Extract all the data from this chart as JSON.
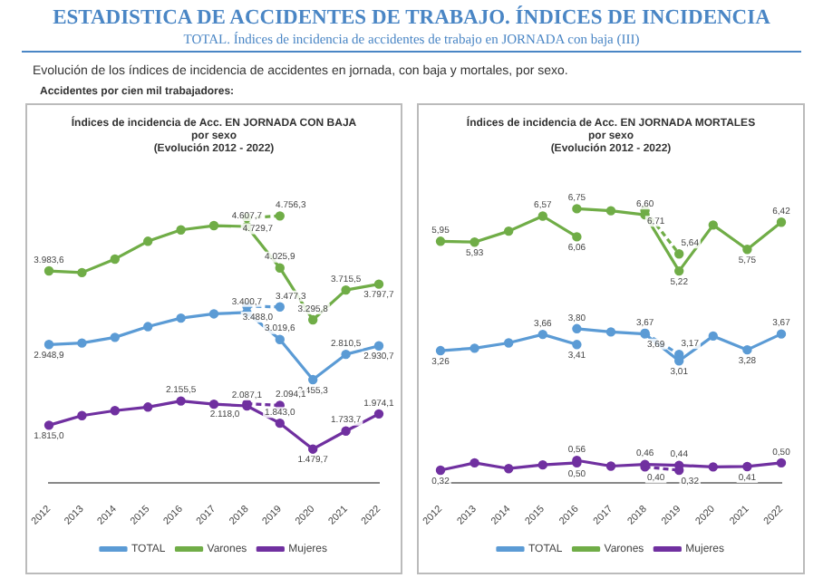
{
  "chart_data": [
    {
      "type": "line",
      "title": "Índices de incidencia de Acc. EN JORNADA CON BAJA",
      "subtitle": "por sexo",
      "annotations": [
        "ESTADISTICA DE ACCIDENTES DE TRABAJO. ÍNDICES DE INCIDENCIA",
        "TOTAL. Índices de incidencia de accidentes de trabajo en JORNADA con baja (III)",
        "Evolución de los índices de incidencia de accidentes en jornada, con baja y mortales, por sexo.",
        "Accidentes por cien mil trabajadores:",
        "(Evolución 2012 - 2022)"
      ],
      "categories": [
        "2012",
        "2013",
        "2014",
        "2015",
        "2016",
        "2017",
        "2018",
        "2019",
        "2020",
        "2021",
        "2022"
      ],
      "legend": "bottom",
      "marker": "circle",
      "tick_labels": "x",
      "series": [
        {
          "name": "TOTAL",
          "color": "#5b9bd5",
          "values": [
            2948.9,
            2970,
            3050,
            3200,
            3320,
            3380,
            3400.7,
            3019.6,
            2455.3,
            2810.5,
            2930.7
          ],
          "value_labels": [
            "2.948,9",
            null,
            null,
            null,
            null,
            null,
            "3.400,7",
            "3.019,6",
            "2.455,3",
            "2.810,5",
            "2.930,7"
          ]
        },
        {
          "name": "Varones",
          "color": "#70ad47",
          "values": [
            3983.6,
            3960,
            4150,
            4400,
            4560,
            4620,
            4607.7,
            4025.9,
            3295.8,
            3715.5,
            3797.7
          ],
          "value_labels": [
            "3.983,6",
            null,
            null,
            null,
            null,
            null,
            "4.607,7",
            "4.025,9",
            "3.295,8",
            "3.715,5",
            "3.797,7"
          ]
        },
        {
          "name": "Mujeres",
          "color": "#7030a0",
          "values": [
            1815.0,
            1950,
            2020,
            2070,
            2155.5,
            2110,
            2087.1,
            1843.0,
            1479.7,
            1733.7,
            1974.1
          ],
          "value_labels": [
            "1.815,0",
            null,
            null,
            null,
            "2.155,5",
            null,
            "2.087,1",
            "1.843,0",
            "1.479,7",
            "1.733,7",
            "1.974,1"
          ]
        },
        {
          "color": "#5b9bd5",
          "line_style": "dashed",
          "values": [
            null,
            null,
            null,
            null,
            null,
            null,
            3488.0,
            3477.3,
            null,
            null,
            null
          ],
          "value_labels": [
            null,
            null,
            null,
            null,
            null,
            null,
            "3.488,0",
            "3.477,3",
            null,
            null,
            null
          ]
        },
        {
          "color": "#70ad47",
          "line_style": "dashed",
          "values": [
            null,
            null,
            null,
            null,
            null,
            null,
            4729.7,
            4756.3,
            null,
            null,
            null
          ],
          "value_labels": [
            null,
            null,
            null,
            null,
            null,
            null,
            "4.729,7",
            "4.756,3",
            null,
            null,
            null
          ]
        },
        {
          "color": "#7030a0",
          "line_style": "dashed",
          "values": [
            null,
            null,
            null,
            null,
            null,
            null,
            2118.0,
            2094.1,
            null,
            null,
            null
          ],
          "value_labels": [
            null,
            null,
            null,
            null,
            null,
            null,
            "2.118,0",
            "2.094,1",
            null,
            null,
            null
          ]
        }
      ]
    },
    {
      "type": "line",
      "title": "Índices de incidencia de Acc. EN JORNADA MORTALES",
      "subtitle": "por sexo",
      "annotations": [
        "(Evolución 2012 - 2022)"
      ],
      "categories": [
        "2012",
        "2013",
        "2014",
        "2015",
        "2016",
        "2017",
        "2018",
        "2019",
        "2020",
        "2021",
        "2022"
      ],
      "legend": "bottom",
      "marker": "circle",
      "tick_labels": "x",
      "series": [
        {
          "name": "TOTAL",
          "color": "#5b9bd5",
          "values": [
            null,
            null,
            null,
            null,
            3.8,
            3.72,
            3.67,
            3.01,
            3.62,
            3.28,
            3.67
          ],
          "value_labels": [
            null,
            null,
            null,
            null,
            "3,80",
            null,
            "3,67",
            "3,01",
            null,
            "3,28",
            "3,67"
          ]
        },
        {
          "name": "Varones",
          "color": "#70ad47",
          "values": [
            null,
            null,
            null,
            null,
            6.75,
            6.7,
            6.6,
            5.22,
            6.35,
            5.75,
            6.42
          ],
          "value_labels": [
            null,
            null,
            null,
            null,
            "6,75",
            null,
            "6,60",
            "5,22",
            null,
            "5,75",
            "6,42"
          ]
        },
        {
          "name": "Mujeres",
          "color": "#7030a0",
          "values": [
            null,
            null,
            null,
            null,
            0.56,
            0.42,
            0.46,
            0.44,
            0.4,
            0.41,
            0.5
          ],
          "value_labels": [
            null,
            null,
            null,
            null,
            "0,56",
            null,
            "0,46",
            "0,44",
            null,
            "0,41",
            "0,50"
          ]
        },
        {
          "color": "#5b9bd5",
          "values": [
            3.26,
            3.32,
            3.45,
            3.66,
            3.41,
            null,
            null,
            null,
            null,
            null,
            null
          ],
          "value_labels": [
            "3,26",
            null,
            null,
            "3,66",
            "3,41",
            null,
            null,
            null,
            null,
            null,
            null
          ]
        },
        {
          "color": "#70ad47",
          "values": [
            5.95,
            5.93,
            6.2,
            6.57,
            6.06,
            null,
            null,
            null,
            null,
            null,
            null
          ],
          "value_labels": [
            "5,95",
            "5,93",
            null,
            "6,57",
            "6,06",
            null,
            null,
            null,
            null,
            null,
            null
          ]
        },
        {
          "color": "#7030a0",
          "values": [
            0.32,
            0.5,
            0.36,
            0.45,
            0.5,
            null,
            null,
            null,
            null,
            null,
            null
          ],
          "value_labels": [
            "0,32",
            null,
            null,
            null,
            "0,50",
            null,
            null,
            null,
            null,
            null,
            null
          ]
        },
        {
          "color": "#5b9bd5",
          "line_style": "dashed",
          "values": [
            null,
            null,
            null,
            null,
            null,
            null,
            3.69,
            3.17,
            null,
            null,
            null
          ],
          "value_labels": [
            null,
            null,
            null,
            null,
            null,
            null,
            "3,69",
            "3,17",
            null,
            null,
            null
          ]
        },
        {
          "color": "#70ad47",
          "line_style": "dashed",
          "values": [
            null,
            null,
            null,
            null,
            null,
            null,
            6.71,
            5.64,
            null,
            null,
            null
          ],
          "value_labels": [
            null,
            null,
            null,
            null,
            null,
            null,
            "6,71",
            "5,64",
            null,
            null,
            null
          ]
        },
        {
          "color": "#7030a0",
          "line_style": "dashed",
          "values": [
            null,
            null,
            null,
            null,
            null,
            null,
            0.4,
            0.32,
            null,
            null,
            null
          ],
          "value_labels": [
            null,
            null,
            null,
            null,
            null,
            null,
            "0,40",
            "0,32",
            null,
            null,
            null
          ]
        }
      ]
    }
  ]
}
